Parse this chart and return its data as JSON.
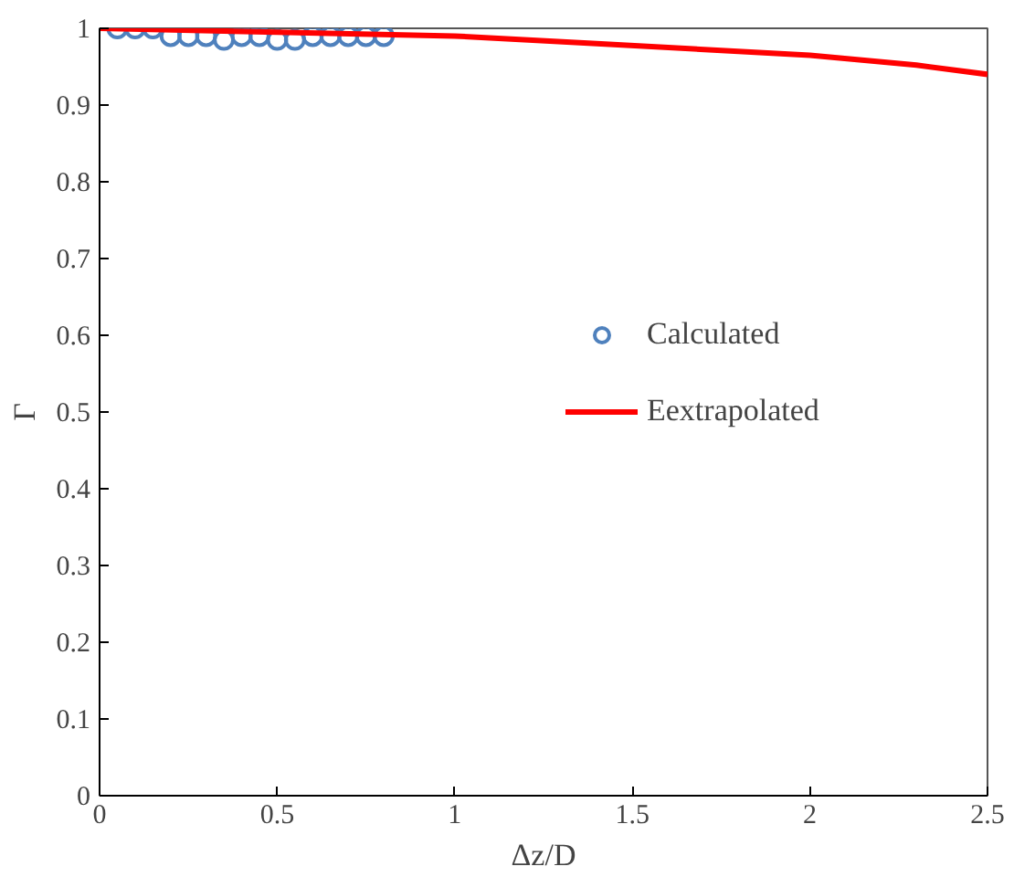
{
  "chart_data": {
    "type": "scatter",
    "xlabel": "Δz/D",
    "ylabel": "Γ",
    "xlim": [
      0,
      2.5
    ],
    "ylim": [
      0,
      1
    ],
    "xticks": [
      0,
      0.5,
      1,
      1.5,
      2,
      2.5
    ],
    "yticks": [
      0,
      0.1,
      0.2,
      0.3,
      0.4,
      0.5,
      0.6,
      0.7,
      0.8,
      0.9,
      1
    ],
    "grid": false,
    "legend": "right",
    "series": [
      {
        "name": "Calculated",
        "marker": "circle",
        "color": "#4f81bd",
        "x": [
          0.05,
          0.1,
          0.15,
          0.2,
          0.25,
          0.3,
          0.35,
          0.4,
          0.45,
          0.5,
          0.55,
          0.6,
          0.65,
          0.7,
          0.75,
          0.8
        ],
        "values": [
          1.0,
          1.0,
          1.0,
          0.99,
          0.99,
          0.99,
          0.985,
          0.99,
          0.99,
          0.985,
          0.985,
          0.99,
          0.99,
          0.99,
          0.99,
          0.99
        ]
      },
      {
        "name": "Eextrapolated",
        "type": "line",
        "line_style": "solid",
        "color": "#ff0000",
        "x": [
          0,
          0.5,
          1,
          1.4,
          2,
          2.3,
          2.5
        ],
        "values": [
          1.0,
          0.995,
          0.99,
          0.98,
          0.965,
          0.952,
          0.94
        ]
      }
    ]
  }
}
